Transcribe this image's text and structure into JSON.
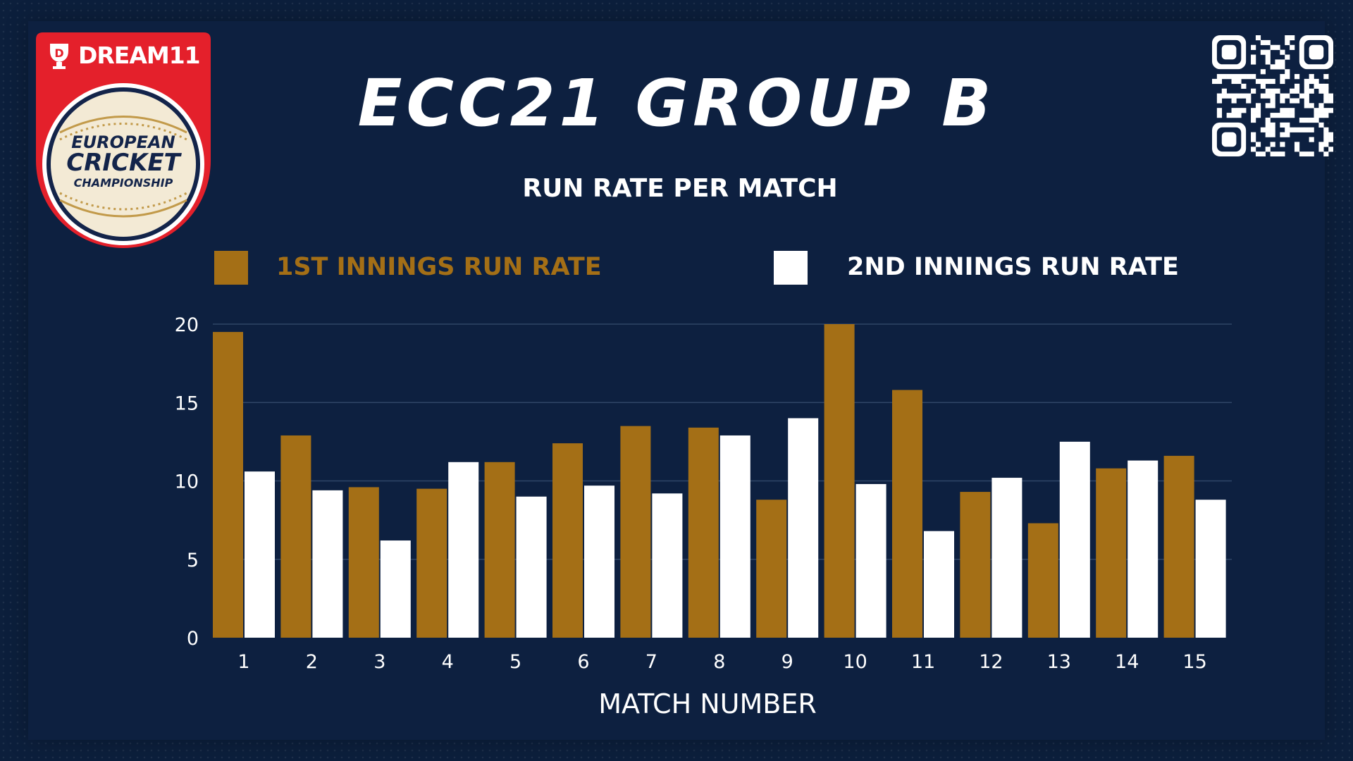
{
  "colors": {
    "background": "#0d2040",
    "first_innings": "#a46f16",
    "second_innings": "#ffffff",
    "gridline": "#2f4566",
    "logo_red": "#e4202b",
    "logo_navy": "#13244a",
    "logo_gold": "#b08a3e"
  },
  "logo": {
    "brand": "DREAM11",
    "line1": "EUROPEAN",
    "line2": "CRICKET",
    "line3": "CHAMPIONSHIP"
  },
  "qr_icon": "qr-code",
  "chart_data": {
    "type": "bar",
    "title": "ECC21 GROUP B",
    "subtitle": "RUN RATE PER MATCH",
    "xlabel": "MATCH NUMBER",
    "ylabel": "",
    "ylim": [
      0,
      20
    ],
    "yticks": [
      0,
      5,
      10,
      15,
      20
    ],
    "grid": true,
    "legend_position": "top",
    "categories": [
      "1",
      "2",
      "3",
      "4",
      "5",
      "6",
      "7",
      "8",
      "9",
      "10",
      "11",
      "12",
      "13",
      "14",
      "15"
    ],
    "series": [
      {
        "name": "1ST INNINGS RUN RATE",
        "values": [
          19.5,
          12.9,
          9.6,
          9.5,
          11.2,
          12.4,
          13.5,
          13.4,
          8.8,
          20.0,
          15.8,
          9.3,
          7.3,
          10.8,
          11.6
        ]
      },
      {
        "name": "2ND INNINGS RUN RATE",
        "values": [
          10.6,
          9.4,
          6.2,
          11.2,
          9.0,
          9.7,
          9.2,
          12.9,
          14.0,
          9.8,
          6.8,
          10.2,
          12.5,
          11.3,
          8.8
        ]
      }
    ]
  }
}
